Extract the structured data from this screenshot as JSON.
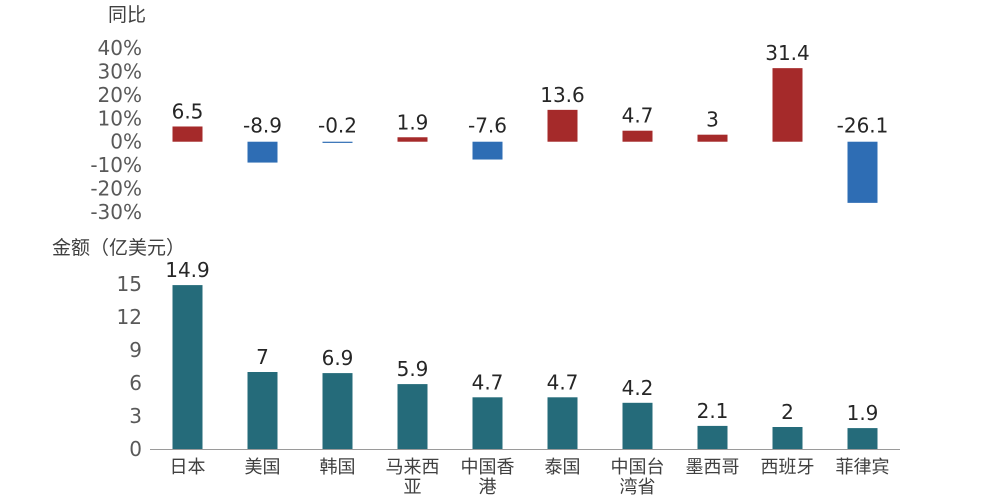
{
  "colors": {
    "positive": "#a52a2a",
    "negative": "#2e6db4",
    "amount": "#256b7a"
  },
  "chart_data": [
    {
      "type": "bar",
      "ylabel": "同比",
      "ylim": [
        -30,
        40
      ],
      "y_ticks": [
        "40%",
        "30%",
        "20%",
        "10%",
        "0%",
        "-10%",
        "-20%",
        "-30%"
      ],
      "categories": [
        "日本",
        "美国",
        "韩国",
        "马来西亚",
        "中国香港",
        "泰国",
        "中国台湾省",
        "墨西哥",
        "西班牙",
        "菲律宾"
      ],
      "values": [
        6.5,
        -8.9,
        -0.2,
        1.9,
        -7.6,
        13.6,
        4.7,
        3,
        31.4,
        -26.1
      ],
      "value_labels": [
        "6.5",
        "-8.9",
        "-0.2",
        "1.9",
        "-7.6",
        "13.6",
        "4.7",
        "3",
        "31.4",
        "-26.1"
      ]
    },
    {
      "type": "bar",
      "ylabel": "金额（亿美元）",
      "ylim": [
        0,
        15
      ],
      "y_ticks": [
        "15",
        "12",
        "9",
        "6",
        "3",
        "0"
      ],
      "categories": [
        "日本",
        "美国",
        "韩国",
        "马来西亚",
        "中国香港",
        "泰国",
        "中国台湾省",
        "墨西哥",
        "西班牙",
        "菲律宾"
      ],
      "category_lines": [
        [
          "日本"
        ],
        [
          "美国"
        ],
        [
          "韩国"
        ],
        [
          "马来西",
          "亚"
        ],
        [
          "中国香",
          "港"
        ],
        [
          "泰国"
        ],
        [
          "中国台",
          "湾省"
        ],
        [
          "墨西哥"
        ],
        [
          "西班牙"
        ],
        [
          "菲律宾"
        ]
      ],
      "values": [
        14.9,
        7,
        6.9,
        5.9,
        4.7,
        4.7,
        4.2,
        2.1,
        2,
        1.9
      ],
      "value_labels": [
        "14.9",
        "7",
        "6.9",
        "5.9",
        "4.7",
        "4.7",
        "4.2",
        "2.1",
        "2",
        "1.9"
      ]
    }
  ]
}
